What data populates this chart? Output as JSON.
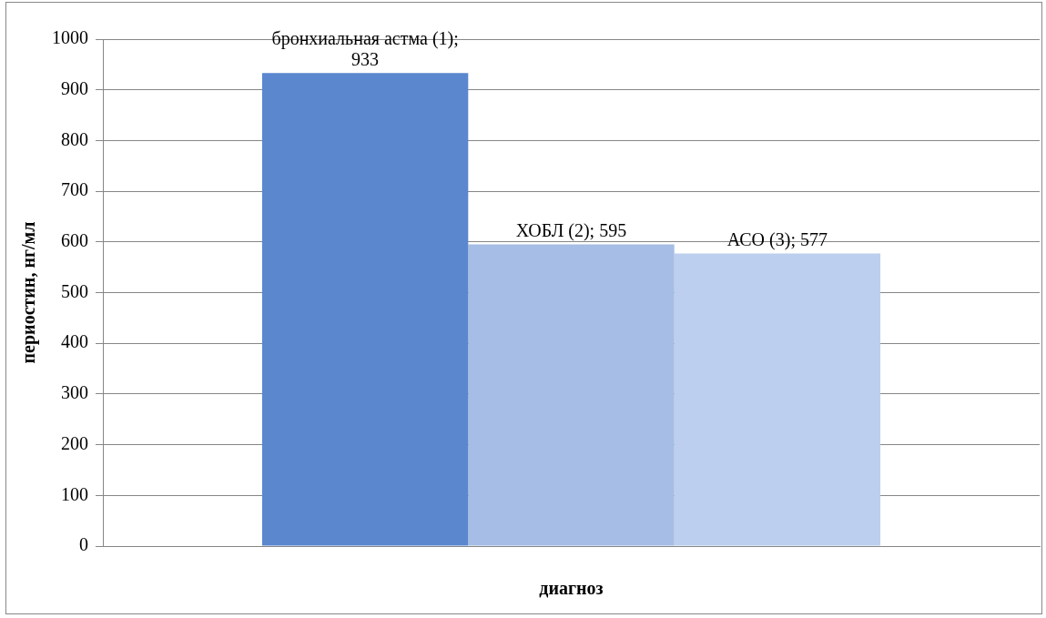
{
  "chart_data": {
    "type": "bar",
    "xlabel": "диагноз",
    "ylabel": "периостин, нг/мл",
    "categories": [
      null
    ],
    "series": [
      {
        "color": "#5b87cf",
        "values": [
          933
        ],
        "value_labels": [
          "бронхиальная астма (1); 933"
        ]
      },
      {
        "color": "#a6bde5",
        "values": [
          595
        ],
        "value_labels": [
          "ХОБЛ (2); 595"
        ]
      },
      {
        "color": "#bccfee",
        "values": [
          577
        ],
        "value_labels": [
          "АСО (3); 577"
        ]
      }
    ],
    "ylim": [
      0,
      1000
    ],
    "yticks": [
      0,
      100,
      200,
      300,
      400,
      500,
      600,
      700,
      800,
      900,
      1000
    ],
    "grid": "y",
    "legend": false
  }
}
